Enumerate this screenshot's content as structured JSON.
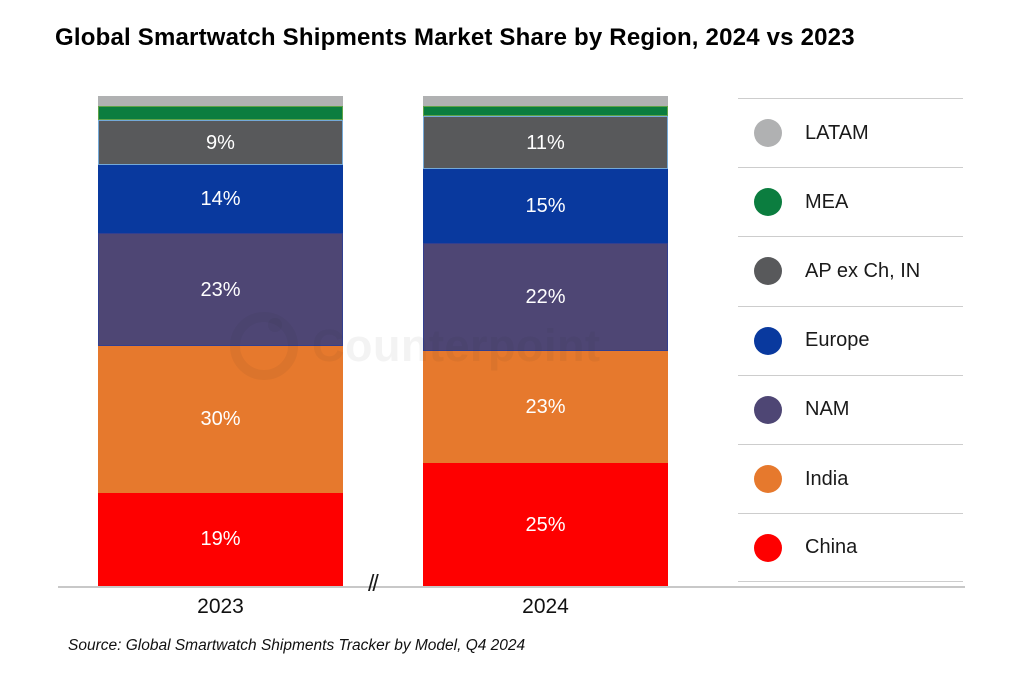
{
  "title": "Global Smartwatch Shipments Market Share by Region, 2024 vs 2023",
  "source": "Source: Global Smartwatch Shipments Tracker by Model, Q4 2024",
  "watermark": {
    "text": "Counterpoint"
  },
  "axis": {
    "break_symbol": "//"
  },
  "chart_data": {
    "type": "bar",
    "stacked": true,
    "orientation": "vertical",
    "categories": [
      "2023",
      "2024"
    ],
    "series": [
      {
        "name": "LATAM",
        "color": "#b0b1b2",
        "values": [
          2,
          2
        ],
        "labels": [
          "",
          ""
        ],
        "show_labels": false
      },
      {
        "name": "MEA",
        "color": "#0b7d3f",
        "border": "#5fa348",
        "values": [
          3,
          2
        ],
        "labels": [
          "",
          ""
        ],
        "show_labels": false
      },
      {
        "name": "AP ex Ch, IN",
        "color": "#58595b",
        "border": "#74a9d8",
        "values": [
          9,
          11
        ],
        "labels": [
          "9%",
          "11%"
        ],
        "show_labels": true
      },
      {
        "name": "Europe",
        "color": "#09399e",
        "values": [
          14,
          15
        ],
        "labels": [
          "14%",
          "15%"
        ],
        "show_labels": true
      },
      {
        "name": "NAM",
        "color": "#4e4674",
        "border": "#333f8f",
        "values": [
          23,
          22
        ],
        "labels": [
          "23%",
          "22%"
        ],
        "show_labels": true
      },
      {
        "name": "India",
        "color": "#e6792d",
        "values": [
          30,
          23
        ],
        "labels": [
          "30%",
          "23%"
        ],
        "show_labels": true
      },
      {
        "name": "China",
        "color": "#fe0000",
        "values": [
          19,
          25
        ],
        "labels": [
          "19%",
          "25%"
        ],
        "show_labels": true
      }
    ],
    "value_suffix": "%",
    "ylim": [
      0,
      100
    ],
    "grid": false,
    "legend_position": "right",
    "label_color": "#ffffff",
    "note": "series listed top-of-stack first; LATAM and MEA values estimated from bar heights (unlabeled in chart)"
  }
}
